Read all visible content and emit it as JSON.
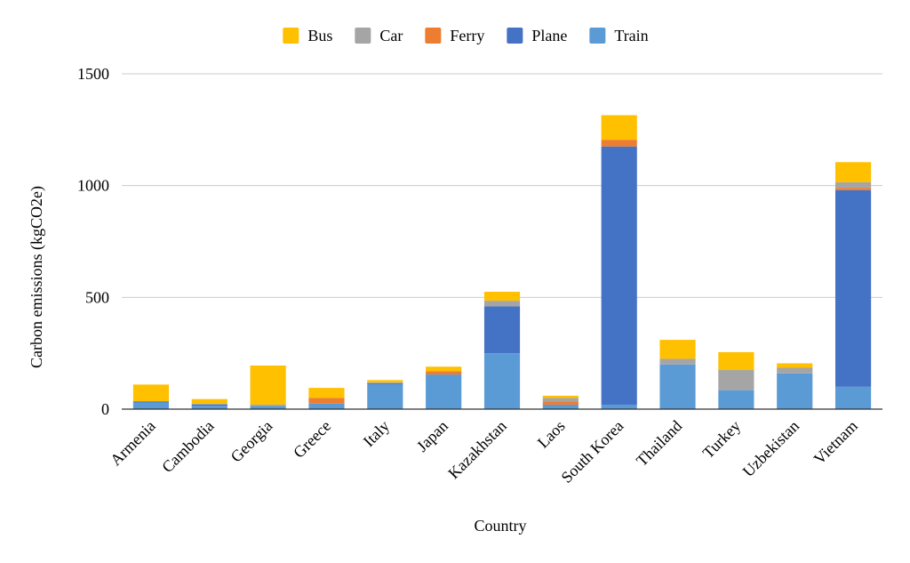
{
  "chart_data": {
    "type": "bar",
    "stacked": true,
    "xlabel": "Country",
    "ylabel": "Carbon emissions (kgCO2e)",
    "ylim": [
      0,
      1500
    ],
    "yticks": [
      0,
      500,
      1000,
      1500
    ],
    "grid": true,
    "legend_position": "top-center",
    "categories": [
      "Armenia",
      "Cambodia",
      "Georgia",
      "Greece",
      "Italy",
      "Japan",
      "Kazakhstan",
      "Laos",
      "South Korea",
      "Thailand",
      "Turkey",
      "Uzbekistan",
      "Vietnam"
    ],
    "series": [
      {
        "name": "Train",
        "color": "#5b9bd5",
        "values": [
          30,
          15,
          15,
          25,
          110,
          155,
          250,
          20,
          20,
          200,
          85,
          160,
          100
        ]
      },
      {
        "name": "Plane",
        "color": "#4472c4",
        "values": [
          5,
          5,
          0,
          0,
          5,
          0,
          210,
          0,
          1155,
          0,
          0,
          0,
          880
        ]
      },
      {
        "name": "Ferry",
        "color": "#ed7d31",
        "values": [
          0,
          0,
          0,
          25,
          0,
          15,
          0,
          15,
          30,
          0,
          0,
          0,
          10
        ]
      },
      {
        "name": "Car",
        "color": "#a5a5a5",
        "values": [
          0,
          5,
          5,
          0,
          5,
          0,
          25,
          15,
          0,
          25,
          90,
          25,
          25
        ]
      },
      {
        "name": "Bus",
        "color": "#ffc000",
        "values": [
          75,
          20,
          175,
          45,
          10,
          20,
          40,
          10,
          110,
          85,
          80,
          20,
          90
        ]
      }
    ],
    "legend_order": [
      "Bus",
      "Car",
      "Ferry",
      "Plane",
      "Train"
    ]
  }
}
